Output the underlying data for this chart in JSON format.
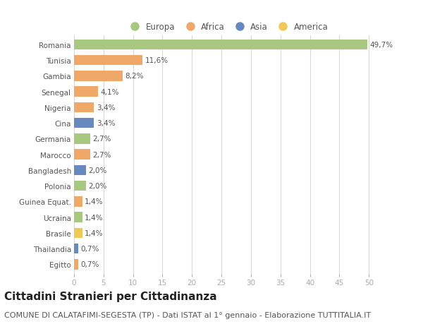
{
  "categories": [
    "Romania",
    "Tunisia",
    "Gambia",
    "Senegal",
    "Nigeria",
    "Cina",
    "Germania",
    "Marocco",
    "Bangladesh",
    "Polonia",
    "Guinea Equat.",
    "Ucraina",
    "Brasile",
    "Thailandia",
    "Egitto"
  ],
  "values": [
    49.7,
    11.6,
    8.2,
    4.1,
    3.4,
    3.4,
    2.7,
    2.7,
    2.0,
    2.0,
    1.4,
    1.4,
    1.4,
    0.7,
    0.7
  ],
  "labels": [
    "49,7%",
    "11,6%",
    "8,2%",
    "4,1%",
    "3,4%",
    "3,4%",
    "2,7%",
    "2,7%",
    "2,0%",
    "2,0%",
    "1,4%",
    "1,4%",
    "1,4%",
    "0,7%",
    "0,7%"
  ],
  "colors": [
    "#a8c882",
    "#f0a868",
    "#f0a868",
    "#f0a868",
    "#f0a868",
    "#6888c0",
    "#a8c882",
    "#f0a868",
    "#6888c0",
    "#a8c882",
    "#f0a868",
    "#a8c882",
    "#f0c858",
    "#6888c0",
    "#f0a868"
  ],
  "legend_labels": [
    "Europa",
    "Africa",
    "Asia",
    "America"
  ],
  "legend_colors": [
    "#a8c882",
    "#f0a868",
    "#6888c0",
    "#f0c858"
  ],
  "title": "Cittadini Stranieri per Cittadinanza",
  "subtitle": "COMUNE DI CALATAFIMI-SEGESTA (TP) - Dati ISTAT al 1° gennaio - Elaborazione TUTTITALIA.IT",
  "xlim": [
    0,
    52
  ],
  "xticks": [
    0,
    5,
    10,
    15,
    20,
    25,
    30,
    35,
    40,
    45,
    50
  ],
  "background_color": "#ffffff",
  "grid_color": "#d8d8d8",
  "bar_height": 0.65,
  "title_fontsize": 11,
  "subtitle_fontsize": 8,
  "label_fontsize": 7.5,
  "tick_fontsize": 7.5,
  "legend_fontsize": 8.5
}
